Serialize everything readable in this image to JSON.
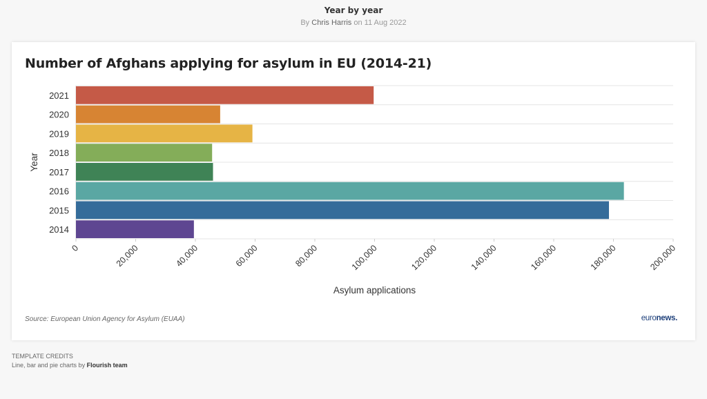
{
  "header": {
    "title": "Year by year",
    "byline_prefix": "By",
    "author": "Chris Harris",
    "byline_suffix": "on 11 Aug 2022"
  },
  "chart_data": {
    "type": "bar",
    "orientation": "horizontal",
    "title": "Number of Afghans applying for asylum in EU (2014-21)",
    "xlabel": "Asylum applications",
    "ylabel": "Year",
    "xlim": [
      0,
      200000
    ],
    "xticks": [
      "0",
      "20,000",
      "40,000",
      "60,000",
      "80,000",
      "100,000",
      "120,000",
      "140,000",
      "160,000",
      "180,000",
      "200,000"
    ],
    "grid": true,
    "legend": "none",
    "categories": [
      "2021",
      "2020",
      "2019",
      "2018",
      "2017",
      "2016",
      "2015",
      "2014"
    ],
    "values": [
      99700,
      48300,
      59100,
      45600,
      45900,
      183500,
      178500,
      39500
    ],
    "colors": [
      "#c55a47",
      "#d78433",
      "#e6b445",
      "#84ad59",
      "#3f8356",
      "#5aa7a3",
      "#356c9a",
      "#5e4691"
    ]
  },
  "footer": {
    "source": "Source: European Union Agency for Asylum (EUAA)",
    "logo_a": "euro",
    "logo_b": "news."
  },
  "credits": {
    "label": "TEMPLATE CREDITS",
    "text": "Line, bar and pie charts by",
    "team": "Flourish team"
  }
}
